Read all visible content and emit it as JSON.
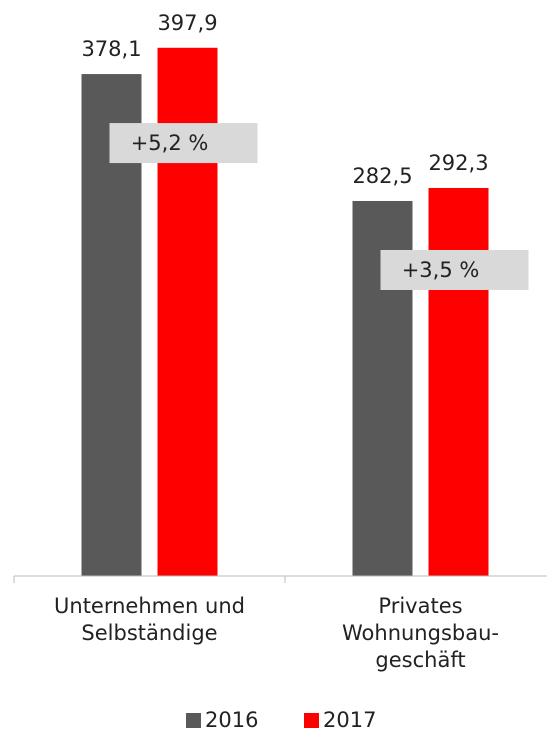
{
  "chart_data": {
    "type": "bar",
    "categories": [
      "Unternehmen und\nSelbständige",
      "Privates\nWohnungsbau-\ngeschäft"
    ],
    "series": [
      {
        "name": "2016",
        "color": "#595959",
        "values": [
          378.1,
          282.5
        ],
        "value_labels": [
          "378,1",
          "282,5"
        ]
      },
      {
        "name": "2017",
        "color": "#ff0000",
        "values": [
          397.9,
          292.3
        ],
        "value_labels": [
          "397,9",
          "292,3"
        ]
      }
    ],
    "annotations": [
      "+5,2 %",
      "+3,5 %"
    ],
    "ylim": [
      0,
      400
    ]
  }
}
